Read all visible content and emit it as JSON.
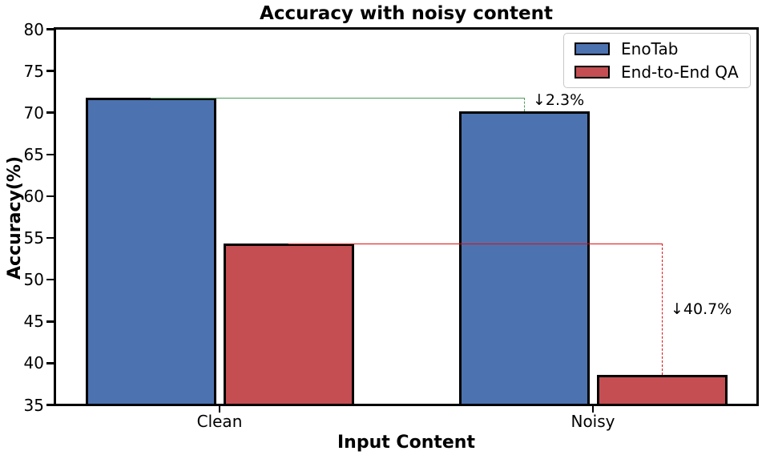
{
  "chart_data": {
    "type": "bar",
    "title": "Accuracy with noisy content",
    "xlabel": "Input Content",
    "ylabel": "Accuracy(%)",
    "categories": [
      "Clean",
      "Noisy"
    ],
    "series": [
      {
        "name": "EnoTab",
        "color": "#4C72B0",
        "values": [
          71.8,
          70.2
        ]
      },
      {
        "name": "End-to-End QA",
        "color": "#C44E52",
        "values": [
          54.3,
          38.6
        ]
      }
    ],
    "ylim": [
      35,
      80
    ],
    "yticks": [
      35,
      40,
      45,
      50,
      55,
      60,
      65,
      70,
      75,
      80
    ],
    "grid": false,
    "bar_edge_color": "#000000",
    "legend_position": "upper right",
    "annotations": [
      {
        "label": "↓2.3%",
        "series": "EnoTab",
        "from": "Clean",
        "to": "Noisy",
        "color": "#4E9D5C"
      },
      {
        "label": "↓40.7%",
        "series": "End-to-End QA",
        "from": "Clean",
        "to": "Noisy",
        "color": "#E01010"
      }
    ]
  }
}
